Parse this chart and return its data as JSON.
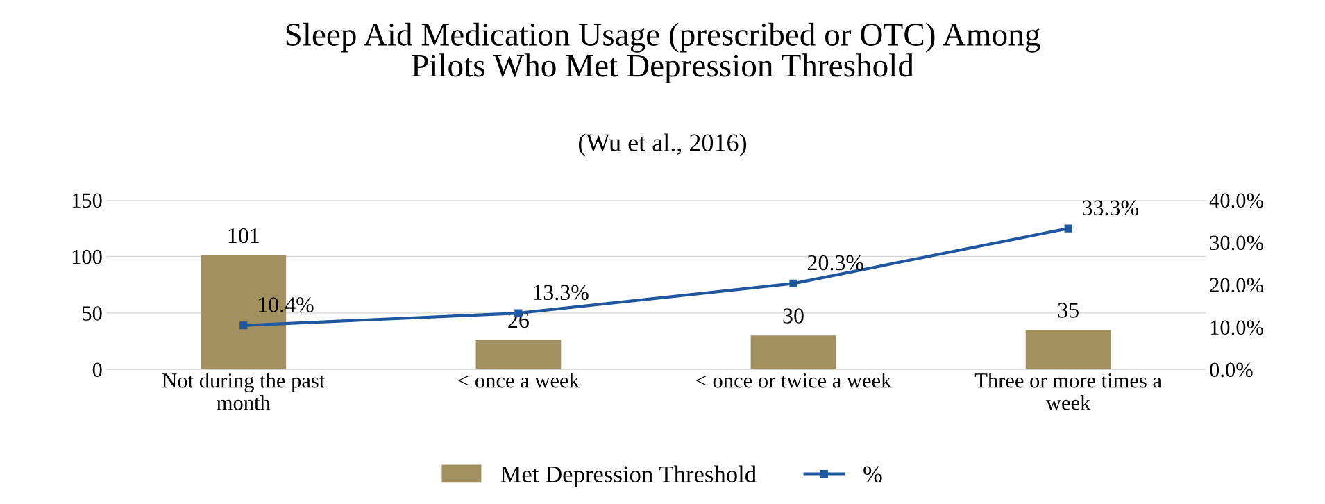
{
  "chart_data": {
    "type": "bar",
    "title": "Sleep Aid Medication Usage (prescribed or OTC) Among\nPilots Who Met Depression Threshold",
    "subtitle": "(Wu et al., 2016)",
    "categories": [
      "Not during the past month",
      "< once a week",
      "< once or twice a week",
      "Three or more times a week"
    ],
    "series": [
      {
        "name": "Met Depression Threshold",
        "color": "#a39061",
        "values": [
          101,
          26,
          30,
          35
        ],
        "value_labels": [
          "101",
          "26",
          "30",
          "35"
        ]
      },
      {
        "name": "%",
        "type": "line",
        "axis": "y2",
        "color": "#1f56a0",
        "values": [
          10.4,
          13.3,
          20.3,
          33.3
        ],
        "value_labels": [
          "10.4%",
          "13.3%",
          "20.3%",
          "33.3%"
        ],
        "marker": "square"
      }
    ],
    "ylim": [
      0,
      150
    ],
    "yticks": [
      0,
      50,
      100,
      150
    ],
    "y2lim": [
      0,
      40
    ],
    "y2ticks": [
      {
        "value": 0,
        "label": "0.0%"
      },
      {
        "value": 10,
        "label": "10.0%"
      },
      {
        "value": 20,
        "label": "20.0%"
      },
      {
        "value": 30,
        "label": "30.0%"
      },
      {
        "value": 40,
        "label": "40.0%"
      }
    ],
    "grid": "y",
    "legend": "bottom"
  }
}
